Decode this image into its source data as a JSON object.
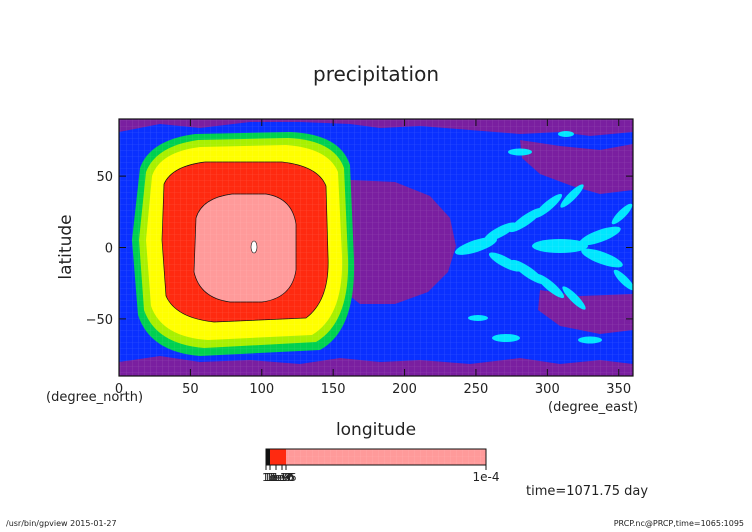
{
  "chart_data": {
    "type": "heatmap",
    "title": "precipitation",
    "xlabel": "longitude",
    "xunit": "(degree_east)",
    "ylabel": "latitude",
    "yunit": "(degree_north)",
    "xlim": [
      0,
      360
    ],
    "ylim": [
      -90,
      90
    ],
    "xticks": [
      0,
      50,
      100,
      150,
      200,
      250,
      300,
      350
    ],
    "yticks": [
      -50,
      0,
      50
    ],
    "time_label": "time=1071.75 day",
    "colorbar": {
      "min_label": "1e-10",
      "max_label": "1e-4",
      "overlapping_labels": [
        "1e-9",
        "1e-8",
        "1e-7",
        "1e-6",
        "1e-5"
      ],
      "colors": [
        "#ff2a10",
        "#ff9a9a"
      ]
    },
    "color_levels": [
      {
        "name": "level-1",
        "color": "#7a1fa0"
      },
      {
        "name": "level-2",
        "color": "#0a30ff"
      },
      {
        "name": "level-3",
        "color": "#00e6ff"
      },
      {
        "name": "level-4",
        "color": "#00d050"
      },
      {
        "name": "level-5",
        "color": "#a8f000"
      },
      {
        "name": "level-6",
        "color": "#ffff00"
      },
      {
        "name": "level-7",
        "color": "#ff2a10"
      },
      {
        "name": "level-8",
        "color": "#ff9a9a"
      }
    ]
  },
  "footer": {
    "left": "/usr/bin/gpview  2015-01-27",
    "right": "PRCP.nc@PRCP,time=1065:1095"
  }
}
